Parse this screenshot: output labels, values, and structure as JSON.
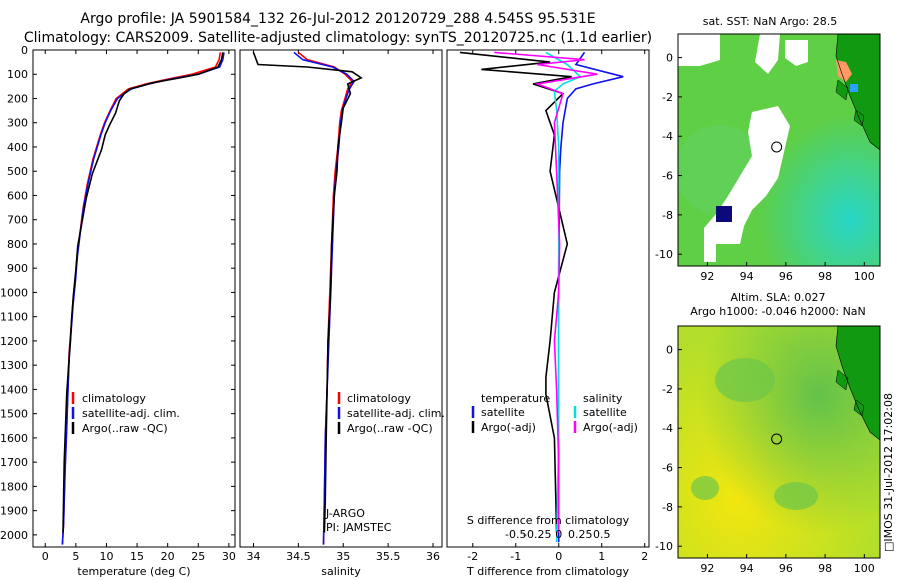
{
  "header": {
    "title_line1": "Argo profile: JA 5901584_132 26-Jul-2012 20120729_288 4.545S 95.531E",
    "title_line2": "Climatology: CARS2009. Satellite-adjusted climatology: synTS_20120725.nc (1.1d earlier)"
  },
  "colors": {
    "climatology": "#ff0000",
    "satellite": "#1010ee",
    "argo": "#000000",
    "sal_satellite": "#00e0e0",
    "sal_argo": "#ff00ff",
    "land": "#119911",
    "coast": "#ff9966"
  },
  "chart_data": [
    {
      "name": "temperature-profile",
      "type": "line",
      "xlabel": "temperature (deg C)",
      "xlim": [
        -2,
        31
      ],
      "ylim": [
        2050,
        0
      ],
      "xticks": [
        "0",
        "5",
        "10",
        "15",
        "20",
        "25",
        "30"
      ],
      "xtick_values": [
        0,
        5,
        10,
        15,
        20,
        25,
        30
      ],
      "yticks": [
        "0",
        "100",
        "200",
        "300",
        "400",
        "500",
        "600",
        "700",
        "800",
        "900",
        "1000",
        "1100",
        "1200",
        "1300",
        "1400",
        "1500",
        "1600",
        "1700",
        "1800",
        "1900",
        "2000"
      ],
      "ytick_values": [
        0,
        100,
        200,
        300,
        400,
        500,
        600,
        700,
        800,
        900,
        1000,
        1100,
        1200,
        1300,
        1400,
        1500,
        1600,
        1700,
        1800,
        1900,
        2000
      ],
      "legend": [
        "climatology",
        "satellite-adj. clim.",
        "Argo(..raw -QC)"
      ],
      "series": [
        {
          "name": "climatology",
          "color": "#ff0000",
          "x": [
            28.6,
            28.4,
            27.8,
            24,
            20,
            16.5,
            13.6,
            12.6,
            11.6,
            10.6,
            9.7,
            9,
            7.8,
            6.9,
            6.2,
            5.7,
            5.2,
            4.9,
            4.5,
            4.2,
            3.9,
            3.7,
            3.5,
            3.2,
            3.0,
            2.8
          ],
          "y": [
            10,
            40,
            70,
            100,
            120,
            140,
            160,
            180,
            200,
            250,
            300,
            350,
            450,
            550,
            650,
            750,
            850,
            950,
            1050,
            1150,
            1250,
            1400,
            1550,
            1750,
            1950,
            2040
          ]
        },
        {
          "name": "satellite-adj. clim.",
          "color": "#1010ee",
          "x": [
            29.2,
            29.0,
            28.5,
            25,
            20.5,
            17,
            14.1,
            12.9,
            11.8,
            10.7,
            9.8,
            9.1,
            7.9,
            7.0,
            6.25,
            5.75,
            5.25,
            4.95,
            4.55,
            4.25,
            3.95,
            3.72,
            3.52,
            3.22,
            3.0,
            2.8
          ],
          "y": [
            10,
            40,
            70,
            100,
            120,
            140,
            160,
            180,
            200,
            250,
            300,
            350,
            450,
            550,
            650,
            750,
            850,
            950,
            1050,
            1150,
            1250,
            1400,
            1550,
            1750,
            1950,
            2040
          ]
        },
        {
          "name": "Argo(..raw -QC)",
          "color": "#000000",
          "x": [
            29.0,
            28.8,
            28.2,
            25,
            22,
            17.6,
            13.9,
            12.9,
            12.1,
            11.5,
            10.5,
            9.8,
            9.2,
            7.7,
            6.7,
            6.0,
            5.3,
            5.0,
            4.6,
            4.3,
            4.1,
            3.8,
            3.5,
            3.1,
            2.9
          ],
          "y": [
            10,
            40,
            70,
            100,
            115,
            135,
            160,
            180,
            210,
            260,
            310,
            350,
            410,
            510,
            610,
            710,
            810,
            910,
            1010,
            1110,
            1210,
            1310,
            1420,
            1700,
            1990
          ]
        }
      ]
    },
    {
      "name": "salinity-profile",
      "type": "line",
      "xlabel": "salinity",
      "xlim": [
        33.85,
        36.1
      ],
      "ylim": [
        2050,
        0
      ],
      "xticks": [
        "34",
        "34.5",
        "35",
        "35.5",
        "36"
      ],
      "xtick_values": [
        34,
        34.5,
        35,
        35.5,
        36
      ],
      "legend": [
        "climatology",
        "satellite-adj. clim.",
        "Argo(..raw -QC)"
      ],
      "annotations": [
        "J-ARGO",
        "PI: JAMSTEC"
      ],
      "series": [
        {
          "name": "climatology",
          "color": "#ff0000",
          "x": [
            34.5,
            34.6,
            34.9,
            35.02,
            35.1,
            35.05,
            35.02,
            34.98,
            34.96,
            34.94,
            34.91,
            34.89,
            34.87,
            34.85,
            34.83,
            34.82,
            34.8,
            34.79,
            34.78
          ],
          "y": [
            10,
            40,
            70,
            100,
            130,
            160,
            200,
            250,
            300,
            400,
            500,
            600,
            800,
            1000,
            1200,
            1400,
            1600,
            1850,
            2040
          ]
        },
        {
          "name": "satellite-adj. clim.",
          "color": "#1010ee",
          "x": [
            34.45,
            34.55,
            34.88,
            35.04,
            35.12,
            35.07,
            35.03,
            34.99,
            34.97,
            34.95,
            34.92,
            34.9,
            34.88,
            34.86,
            34.84,
            34.82,
            34.8,
            34.79,
            34.78
          ],
          "y": [
            10,
            40,
            70,
            100,
            130,
            160,
            200,
            250,
            300,
            400,
            500,
            600,
            800,
            1000,
            1200,
            1400,
            1600,
            1850,
            2040
          ]
        },
        {
          "name": "Argo(..raw -QC)",
          "color": "#000000",
          "x": [
            34.0,
            34.05,
            34.6,
            35.1,
            35.2,
            35.05,
            35.08,
            35.0,
            34.98,
            34.94,
            34.93,
            34.9,
            34.87,
            34.86,
            34.83,
            34.82,
            34.81,
            34.8,
            34.79
          ],
          "y": [
            10,
            60,
            70,
            90,
            115,
            140,
            180,
            240,
            300,
            400,
            500,
            600,
            800,
            1000,
            1200,
            1400,
            1600,
            1850,
            1990
          ]
        }
      ]
    },
    {
      "name": "difference-profile",
      "type": "line",
      "xlabel": "T difference from climatology",
      "xlabel_top": "S difference from climatology",
      "xlim": [
        -2.6,
        2.1
      ],
      "ylim": [
        2050,
        0
      ],
      "xticks": [
        "-2",
        "-1",
        "0",
        "1",
        "2"
      ],
      "xtick_values": [
        -2,
        -1,
        0,
        1,
        2
      ],
      "xticks_s": [
        "-0.5",
        "-0.25",
        "0",
        "0.25",
        "0.5"
      ],
      "legend_titles": [
        "temperature",
        "salinity"
      ],
      "legend": [
        "satellite",
        "Argo(-adj)",
        "satellite",
        "Argo(-adj)"
      ],
      "series": [
        {
          "name": "satellite",
          "color": "#1010ee",
          "x": [
            0.6,
            0.4,
            1.5,
            0.8,
            0.4,
            0.2,
            0.1,
            0.05,
            0.02,
            0.01,
            0,
            0,
            0,
            0,
            0
          ],
          "y": [
            10,
            60,
            110,
            140,
            160,
            200,
            300,
            400,
            500,
            700,
            900,
            1200,
            1500,
            1800,
            2030
          ]
        },
        {
          "name": "Argo(-adj)",
          "color": "#000000",
          "x": [
            -2.3,
            -0.2,
            -1.8,
            0.3,
            -0.6,
            0.1,
            -0.3,
            -0.1,
            -0.2,
            0.2,
            -0.1,
            -0.2,
            -0.3,
            -0.3,
            -0.1,
            -0.05
          ],
          "y": [
            10,
            50,
            80,
            110,
            140,
            180,
            250,
            350,
            500,
            800,
            1000,
            1200,
            1350,
            1420,
            1600,
            1990
          ]
        },
        {
          "name": "satellite",
          "color": "#00e0e0",
          "x": [
            -0.3,
            0.2,
            0.5,
            0.1,
            -0.1,
            -0.05,
            0,
            0,
            0,
            0,
            0,
            0,
            -0.05
          ],
          "y": [
            10,
            60,
            110,
            140,
            170,
            250,
            400,
            600,
            800,
            1000,
            1300,
            1600,
            2030
          ]
        },
        {
          "name": "Argo(-adj)",
          "color": "#ff00ff",
          "x": [
            -1.5,
            0.6,
            -0.5,
            0.9,
            -0.5,
            0.1,
            -0.1,
            -0.05,
            0.02,
            0,
            -0.1,
            -0.05,
            0,
            0
          ],
          "y": [
            10,
            40,
            60,
            100,
            140,
            180,
            300,
            500,
            800,
            1000,
            1200,
            1400,
            1700,
            1990
          ]
        }
      ]
    },
    {
      "name": "sst-map",
      "type": "heatmap",
      "title": "sat. SST: NaN Argo: 28.5",
      "xticks": [
        "92",
        "94",
        "96",
        "98",
        "100"
      ],
      "xtick_values": [
        92,
        94,
        96,
        98,
        100
      ],
      "yticks": [
        "0",
        "-2",
        "-4",
        "-6",
        "-8",
        "-10"
      ],
      "ytick_values": [
        0,
        -2,
        -4,
        -6,
        -8,
        -10
      ],
      "xlim": [
        90.5,
        100.8
      ],
      "ylim": [
        -10.6,
        1.2
      ],
      "marker": {
        "lon": 95.53,
        "lat": -4.545
      }
    },
    {
      "name": "sla-map",
      "type": "heatmap",
      "title_line1": "Altim. SLA: 0.027",
      "title_line2": "Argo h1000: -0.046  h2000: NaN",
      "xticks": [
        "92",
        "94",
        "96",
        "98",
        "100"
      ],
      "xtick_values": [
        92,
        94,
        96,
        98,
        100
      ],
      "yticks": [
        "0",
        "-2",
        "-4",
        "-6",
        "-8",
        "-10"
      ],
      "ytick_values": [
        0,
        -2,
        -4,
        -6,
        -8,
        -10
      ],
      "xlim": [
        90.5,
        100.8
      ],
      "ylim": [
        -10.6,
        1.2
      ],
      "marker": {
        "lon": 95.53,
        "lat": -4.545
      }
    }
  ],
  "footer": {
    "stamp": "□IMOS 31-Jul-2012 17:02:08"
  }
}
